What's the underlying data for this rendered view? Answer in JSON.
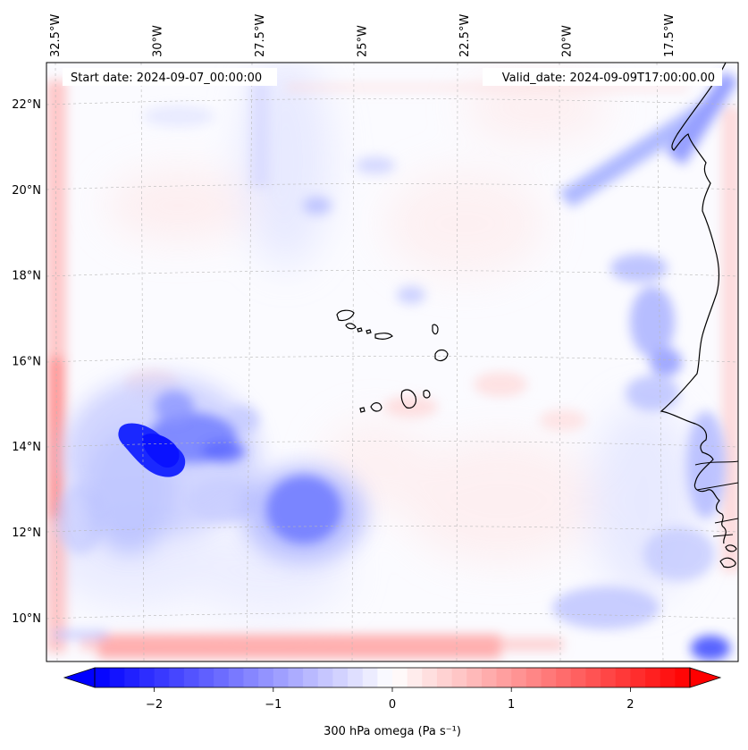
{
  "map": {
    "start_label": "Start date: 2024-09-07_00:00:00",
    "valid_label": "Valid_date: 2024-09-09T17:00:00.00",
    "lon_ticks": [
      {
        "label": "32.5°W",
        "lon": -32.5
      },
      {
        "label": "30°W",
        "lon": -30
      },
      {
        "label": "27.5°W",
        "lon": -27.5
      },
      {
        "label": "25°W",
        "lon": -25
      },
      {
        "label": "22.5°W",
        "lon": -22.5
      },
      {
        "label": "20°W",
        "lon": -20
      },
      {
        "label": "17.5°W",
        "lon": -17.5
      }
    ],
    "lat_ticks": [
      {
        "label": "22°N",
        "lat": 22
      },
      {
        "label": "20°N",
        "lat": 20
      },
      {
        "label": "18°N",
        "lat": 18
      },
      {
        "label": "16°N",
        "lat": 16
      },
      {
        "label": "14°N",
        "lat": 14
      },
      {
        "label": "12°N",
        "lat": 12
      },
      {
        "label": "10°N",
        "lat": 10
      }
    ],
    "colors": {
      "negative": "#0000ff",
      "positive": "#ff0000",
      "neutral": "#ffffff",
      "coast": "#000000",
      "grid": "#b0b0b0"
    }
  },
  "colorbar": {
    "label": "300 hPa omega (Pa s⁻¹)",
    "min": -2.75,
    "max": 2.75,
    "ticks": [
      {
        "label": "−2",
        "value": -2
      },
      {
        "label": "−1",
        "value": -1
      },
      {
        "label": "0",
        "value": 0
      },
      {
        "label": "1",
        "value": 1
      },
      {
        "label": "2",
        "value": 2
      }
    ]
  }
}
